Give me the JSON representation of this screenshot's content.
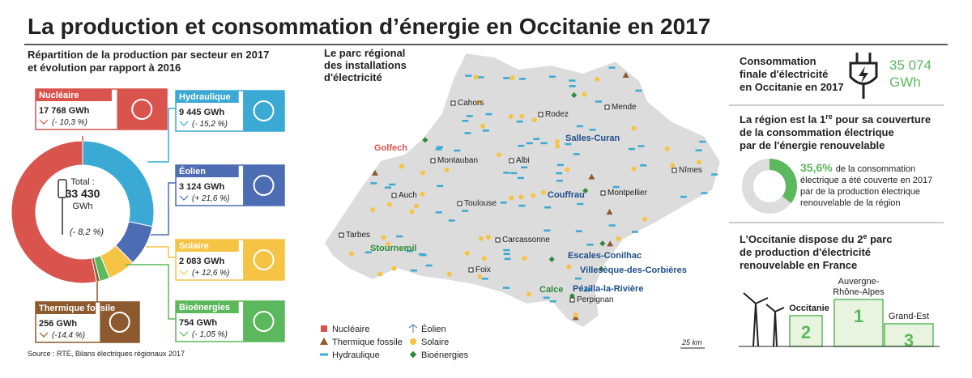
{
  "header": {
    "title": "La production et consommation d’énergie en Occitanie en 2017"
  },
  "chart_data": [
    {
      "type": "donut",
      "title": [
        "Répartition de la production par secteur en 2017",
        "et évolution par rapport à 2016"
      ],
      "categories": [
        "Nucléaire",
        "Hydraulique",
        "Éolien",
        "Solaire",
        "Bioénergies",
        "Thermique fossile"
      ],
      "values": [
        17768,
        9445,
        3124,
        2083,
        754,
        256
      ],
      "value_labels": [
        "17 768 GWh",
        "9 445 GWh",
        "3 124 GWh",
        "2 083 GWh",
        "754 GWh",
        "256 GWh"
      ],
      "changes": [
        "(- 10,3 %)",
        "(- 15,2 %)",
        "(+ 21,6 %)",
        "(+ 12,6 %)",
        "(- 1,05 %)",
        "(-14,4 %)"
      ],
      "colors": [
        "#d9544d",
        "#3aa9d3",
        "#4c6cb3",
        "#f6c445",
        "#5cb85c",
        "#8c5a2e"
      ],
      "total": {
        "label": "Total :",
        "value": 33430,
        "value_label": "33 430",
        "unit": "GWh",
        "change": "(- 8,2 %)"
      },
      "source": "Source : RTE, Bilans électriques régionaux 2017"
    },
    {
      "type": "donut",
      "values": [
        35.6
      ],
      "value_labels": [
        "35,6%"
      ],
      "color": "#5cb85c",
      "text": [
        "de la consommation",
        "électrique a été couverte en 2017",
        "par de la production électrique",
        "renouvelable de la région"
      ]
    }
  ],
  "map": {
    "title": [
      "Le parc régional",
      "des installations",
      "d'électricité"
    ],
    "cities": [
      "Cahors",
      "Rodez",
      "Mende",
      "Montauban",
      "Albi",
      "Auch",
      "Toulouse",
      "Nîmes",
      "Montpellier",
      "Tarbes",
      "Carcassonne",
      "Foix",
      "Perpignan"
    ],
    "sites": [
      "Golfech",
      "Salles-Curan",
      "Couffrau",
      "Stournemil",
      "Escales-Conilhac",
      "Villesèque-des-Corbières",
      "Calce",
      "Pézilla-la-Rivière"
    ],
    "legend": [
      "Nucléaire",
      "Éolien",
      "Thermique fossile",
      "Solaire",
      "Hydraulique",
      "Bioénergies"
    ],
    "scale": "25 km"
  },
  "consumption": {
    "label": [
      "Consommation",
      "finale d'électricité",
      "en Occitanie en 2017"
    ],
    "value": "35 074",
    "unit": "GWh"
  },
  "coverage": {
    "title": [
      [
        "La région est la 1",
        "re",
        " pour sa couverture"
      ],
      [
        "de la consommation électrique"
      ],
      [
        "par de l'énergie renouvelable"
      ]
    ]
  },
  "ranking": {
    "title": [
      [
        "L’Occitanie dispose du 2",
        "e",
        " parc"
      ],
      [
        "de production d'électricité"
      ],
      [
        "renouvelable en France"
      ]
    ],
    "podium": [
      {
        "region": [
          "Occitanie"
        ],
        "rank": "2"
      },
      {
        "region": [
          "Auvergne-",
          "Rhône-Alpes"
        ],
        "rank": "1"
      },
      {
        "region": [
          "Grand-Est"
        ],
        "rank": "3"
      }
    ]
  }
}
